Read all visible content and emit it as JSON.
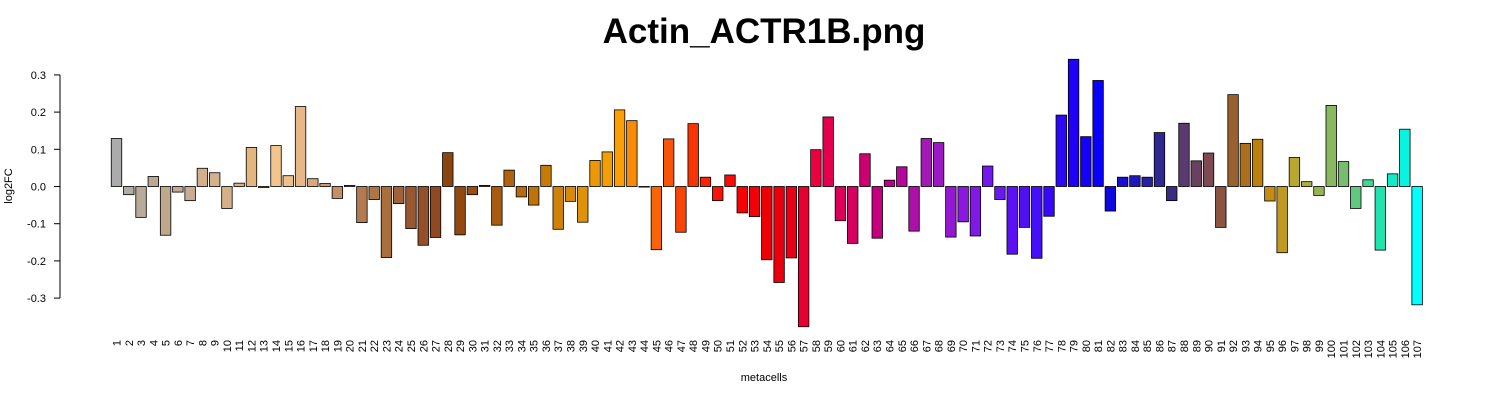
{
  "chart_data": {
    "type": "bar",
    "title": "Actin_ACTR1B.png",
    "xlabel": "metacells",
    "ylabel": "log2FC",
    "ylim": [
      -0.33,
      0.35
    ],
    "yticks": [
      -0.3,
      -0.2,
      -0.1,
      0.0,
      0.1,
      0.2,
      0.3
    ],
    "ytick_labels": [
      "-0.3",
      "-0.2",
      "-0.1",
      "0.0",
      "0.1",
      "0.2",
      "0.3"
    ],
    "grid": false,
    "legend": "none",
    "categories": [
      "1",
      "2",
      "3",
      "4",
      "5",
      "6",
      "7",
      "8",
      "9",
      "10",
      "11",
      "12",
      "13",
      "14",
      "15",
      "16",
      "17",
      "18",
      "19",
      "20",
      "21",
      "22",
      "23",
      "24",
      "25",
      "26",
      "27",
      "28",
      "29",
      "30",
      "31",
      "32",
      "33",
      "34",
      "35",
      "36",
      "37",
      "38",
      "39",
      "40",
      "41",
      "42",
      "43",
      "44",
      "45",
      "46",
      "47",
      "48",
      "49",
      "50",
      "51",
      "52",
      "53",
      "54",
      "55",
      "56",
      "57",
      "58",
      "59",
      "60",
      "61",
      "62",
      "63",
      "64",
      "65",
      "66",
      "67",
      "68",
      "69",
      "70",
      "71",
      "72",
      "73",
      "74",
      "75",
      "76",
      "77",
      "78",
      "79",
      "80",
      "81",
      "82",
      "83",
      "84",
      "85",
      "86",
      "87",
      "88",
      "89",
      "90",
      "91",
      "92",
      "93",
      "94",
      "95",
      "96",
      "97",
      "98",
      "99",
      "100",
      "101",
      "102",
      "103",
      "104",
      "105",
      "106",
      "107"
    ],
    "values": [
      0.129,
      -0.022,
      -0.083,
      0.027,
      -0.131,
      -0.015,
      -0.038,
      0.049,
      0.037,
      -0.059,
      0.009,
      0.105,
      -0.003,
      0.11,
      0.029,
      0.215,
      0.021,
      0.008,
      -0.032,
      0.003,
      -0.097,
      -0.035,
      -0.191,
      -0.046,
      -0.113,
      -0.158,
      -0.137,
      0.091,
      -0.13,
      -0.022,
      0.003,
      -0.104,
      0.044,
      -0.028,
      -0.05,
      0.057,
      -0.115,
      -0.04,
      -0.096,
      0.07,
      0.093,
      0.206,
      0.177,
      0.0,
      -0.17,
      0.128,
      -0.123,
      0.169,
      0.025,
      -0.038,
      0.031,
      -0.071,
      -0.081,
      -0.197,
      -0.258,
      -0.192,
      -0.377,
      0.099,
      0.187,
      -0.092,
      -0.153,
      0.088,
      -0.139,
      0.017,
      0.053,
      -0.12,
      0.129,
      0.118,
      -0.136,
      -0.095,
      -0.133,
      0.055,
      -0.035,
      -0.182,
      -0.11,
      -0.193,
      -0.08,
      0.192,
      0.342,
      0.134,
      0.285,
      -0.066,
      0.025,
      0.029,
      0.025,
      0.145,
      -0.038,
      0.17,
      0.069,
      0.09,
      -0.11,
      0.247,
      0.116,
      0.127,
      -0.039,
      -0.178,
      0.078,
      0.013,
      -0.024,
      0.218,
      0.067,
      -0.059,
      0.018,
      -0.171,
      0.034,
      0.154,
      -0.318
    ],
    "colors": [
      "#ababab",
      "#b2ab9f",
      "#b8a998",
      "#bba890",
      "#c0a88e",
      "#c4a990",
      "#c9ad92",
      "#d0b08f",
      "#d3b18c",
      "#d7b087",
      "#dbb182",
      "#e2b67e",
      "#ebbd85",
      "#f3c48c",
      "#f0bf8a",
      "#e7b78a",
      "#d9a87e",
      "#cf9c72",
      "#c58f66",
      "#bd865d",
      "#b47b51",
      "#ae7546",
      "#a86e3c",
      "#a06236",
      "#985730",
      "#93502a",
      "#8f4a24",
      "#8a4510",
      "#924910",
      "#9a4f10",
      "#a25510",
      "#a85b10",
      "#b06210",
      "#b86a10",
      "#c07208",
      "#c87a06",
      "#d08206",
      "#d88a06",
      "#e09206",
      "#ec9806",
      "#f49e06",
      "#fc9e06",
      "#fa8a06",
      "#f87406",
      "#f86406",
      "#f85406",
      "#f84406",
      "#f83406",
      "#f82406",
      "#f81406",
      "#f80a06",
      "#f80006",
      "#f20006",
      "#ec0006",
      "#e8000c",
      "#e80018",
      "#e80030",
      "#ec0040",
      "#e4004c",
      "#dc0058",
      "#d40062",
      "#cc0070",
      "#c4007e",
      "#bc008c",
      "#b4089a",
      "#ac10a8",
      "#a418b6",
      "#9c18c4",
      "#9418d2",
      "#8c18e0",
      "#8018e8",
      "#7418f0",
      "#6818f0",
      "#5c10f4",
      "#5010f4",
      "#4410f8",
      "#3808f8",
      "#2c08f8",
      "#2000f8",
      "#1400f8",
      "#0800f8",
      "#1008e0",
      "#1810cc",
      "#2018b8",
      "#2820a4",
      "#302890",
      "#3c2c80",
      "#5a3a70",
      "#6a4060",
      "#7c4a50",
      "#8a5440",
      "#9a6030",
      "#aa7020",
      "#bc8010",
      "#c48c10",
      "#c09a20",
      "#b8a830",
      "#aab040",
      "#98b450",
      "#88b860",
      "#78bc70",
      "#60c880",
      "#40d898",
      "#20e4b0",
      "#10ecc8",
      "#08f4e0",
      "#00ffff"
    ]
  }
}
